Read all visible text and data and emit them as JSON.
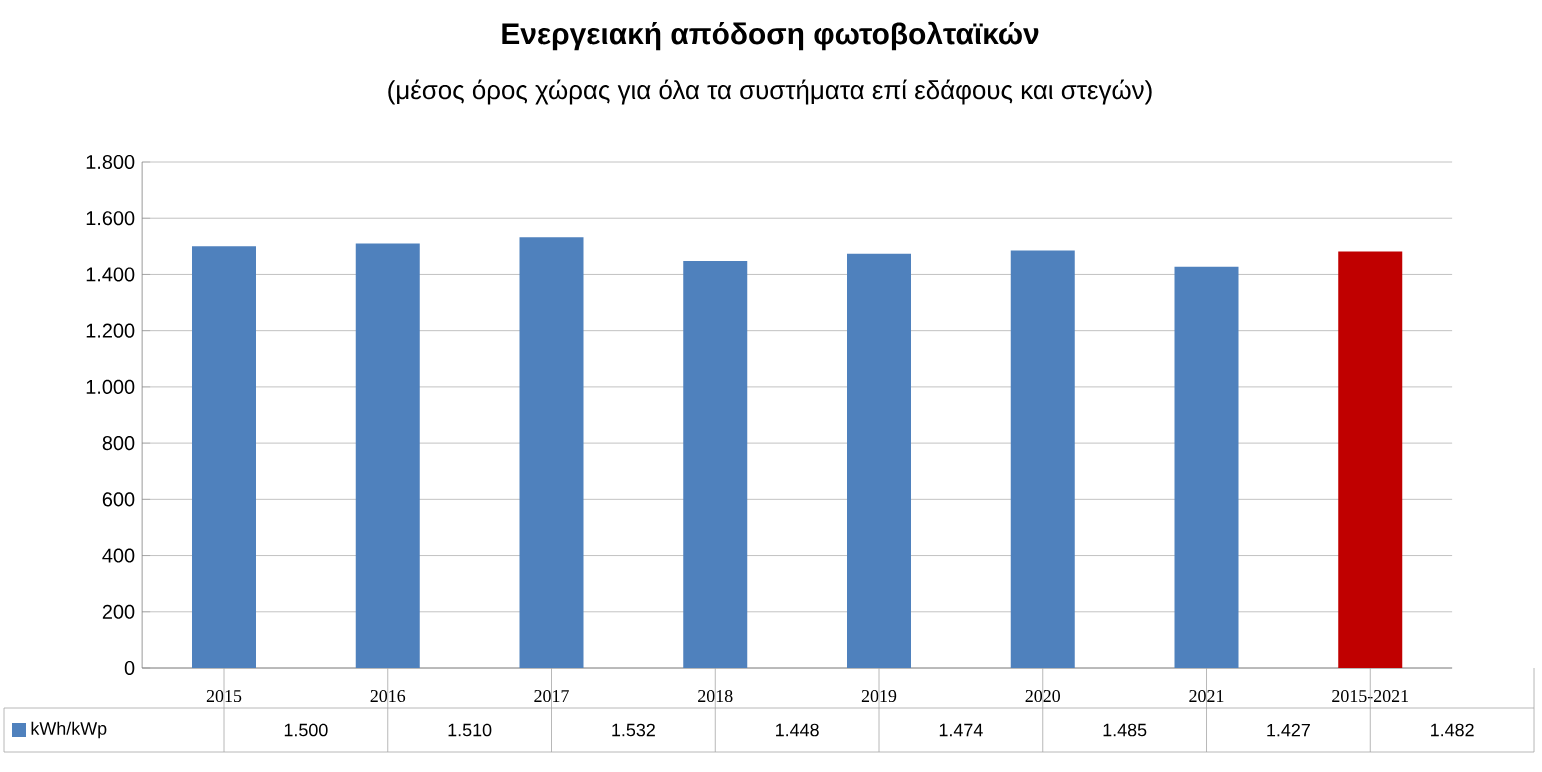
{
  "chart_data": {
    "type": "bar",
    "title": "Ενεργειακή απόδοση φωτοβολταϊκών",
    "subtitle": "(μέσος όρος χώρας για όλα τα συστήματα επί εδάφους και στεγών)",
    "categories": [
      "2015",
      "2016",
      "2017",
      "2018",
      "2019",
      "2020",
      "2021",
      "2015-2021"
    ],
    "series": [
      {
        "name": "kWh/kWp",
        "color": "#4f81bd",
        "colors": [
          "#4f81bd",
          "#4f81bd",
          "#4f81bd",
          "#4f81bd",
          "#4f81bd",
          "#4f81bd",
          "#4f81bd",
          "#c00000"
        ],
        "values": [
          1500,
          1510,
          1532,
          1448,
          1474,
          1485,
          1427,
          1482
        ]
      }
    ],
    "value_labels": [
      "1.500",
      "1.510",
      "1.532",
      "1.448",
      "1.474",
      "1.485",
      "1.427",
      "1.482"
    ],
    "ylim": [
      0,
      1800
    ],
    "yticks": [
      0,
      200,
      400,
      600,
      800,
      {
        "value": 1000,
        "label": "1.000"
      },
      {
        "value": 1200,
        "label": "1.200"
      },
      {
        "value": 1400,
        "label": "1.400"
      },
      {
        "value": 1600,
        "label": "1.600"
      },
      {
        "value": 1800,
        "label": "1.800"
      }
    ],
    "grid": "y",
    "legend": "bottom"
  }
}
